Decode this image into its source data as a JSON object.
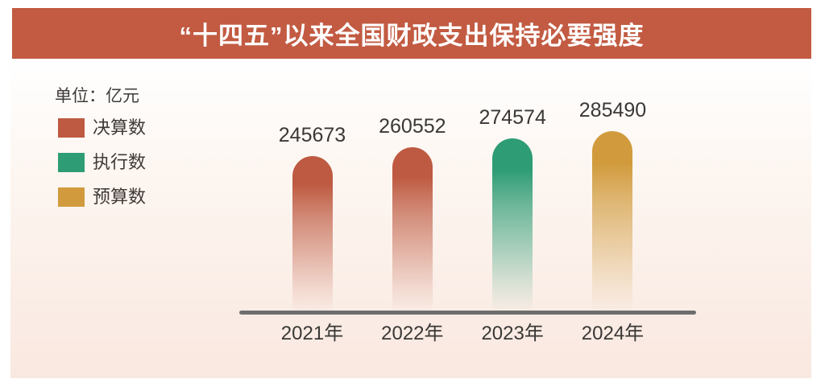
{
  "banner": {
    "title": "“十四五”以来全国财政支出保持必要强度"
  },
  "chart_data": {
    "type": "bar",
    "title": "“十四五”以来全国财政支出保持必要强度",
    "unit_label": "单位：亿元",
    "categories": [
      "2021年",
      "2022年",
      "2023年",
      "2024年"
    ],
    "values": [
      245673,
      260552,
      274574,
      285490
    ],
    "bars": [
      {
        "category": "2021年",
        "value": "245673",
        "series": "决算数",
        "color": "#be5a41"
      },
      {
        "category": "2022年",
        "value": "260552",
        "series": "决算数",
        "color": "#be5a41"
      },
      {
        "category": "2023年",
        "value": "274574",
        "series": "执行数",
        "color": "#2e9c75"
      },
      {
        "category": "2024年",
        "value": "285490",
        "series": "预算数",
        "color": "#d19b3d"
      }
    ],
    "legend": [
      {
        "label": "决算数",
        "color": "#be5a41"
      },
      {
        "label": "执行数",
        "color": "#2e9c75"
      },
      {
        "label": "预算数",
        "color": "#d19b3d"
      }
    ],
    "ylim": [
      0,
      285490
    ],
    "grid": false,
    "legend_position": "top-left",
    "axis_color": "#6e6e6e",
    "banner_color": "#c25b42"
  }
}
